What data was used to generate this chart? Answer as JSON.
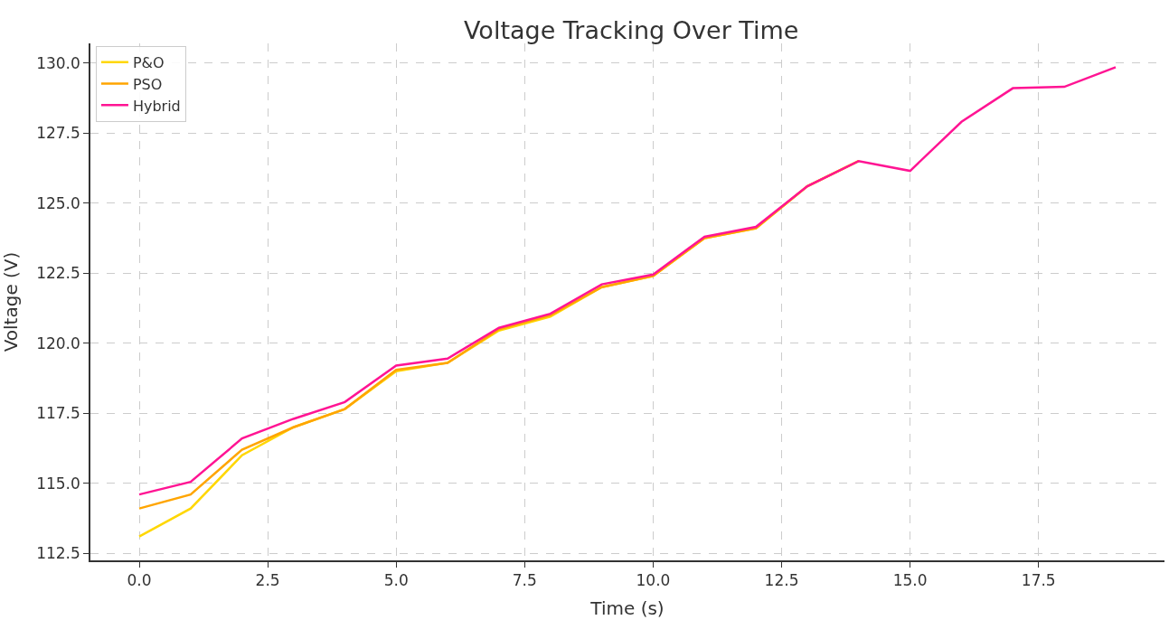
{
  "chart_data": {
    "type": "line",
    "title": "Voltage Tracking Over Time",
    "xlabel": "Time (s)",
    "ylabel": "Voltage (V)",
    "x": [
      0,
      1,
      2,
      3,
      4,
      5,
      6,
      7,
      8,
      9,
      10,
      11,
      12,
      13,
      14,
      15,
      16,
      17,
      18,
      19
    ],
    "series": [
      {
        "name": "P&O",
        "color": "#ffd700",
        "values": [
          113.1,
          114.1,
          116.0,
          117.0,
          117.65,
          119.0,
          119.3,
          120.45,
          120.95,
          122.0,
          122.4,
          123.75,
          124.1,
          125.6,
          126.5,
          null,
          null,
          null,
          null,
          null
        ]
      },
      {
        "name": "PSO",
        "color": "#ffa500",
        "values": [
          114.1,
          114.6,
          116.2,
          117.0,
          117.65,
          119.05,
          119.3,
          120.5,
          121.0,
          122.0,
          122.4,
          123.75,
          124.1,
          125.6,
          126.5,
          null,
          null,
          null,
          null,
          null
        ]
      },
      {
        "name": "Hybrid",
        "color": "#ff1493",
        "values": [
          114.6,
          115.05,
          116.6,
          117.3,
          117.9,
          119.2,
          119.45,
          120.55,
          121.05,
          122.1,
          122.45,
          123.8,
          124.15,
          125.6,
          126.5,
          126.15,
          127.9,
          129.1,
          129.15,
          129.85
        ]
      }
    ],
    "xlim": [
      -0.95,
      19.95
    ],
    "xticks": [
      {
        "value": 0,
        "label": "0.0"
      },
      {
        "value": 2.5,
        "label": "2.5"
      },
      {
        "value": 5,
        "label": "5.0"
      },
      {
        "value": 7.5,
        "label": "7.5"
      },
      {
        "value": 10,
        "label": "10.0"
      },
      {
        "value": 12.5,
        "label": "12.5"
      },
      {
        "value": 15,
        "label": "15.0"
      },
      {
        "value": 17.5,
        "label": "17.5"
      }
    ],
    "ylim": [
      112.25,
      130.7
    ],
    "yticks": [
      {
        "value": 112.5,
        "label": "112.5"
      },
      {
        "value": 115,
        "label": "115.0"
      },
      {
        "value": 117.5,
        "label": "117.5"
      },
      {
        "value": 120,
        "label": "120.0"
      },
      {
        "value": 122.5,
        "label": "122.5"
      },
      {
        "value": 125,
        "label": "125.0"
      },
      {
        "value": 127.5,
        "label": "127.5"
      },
      {
        "value": 130,
        "label": "130.0"
      }
    ],
    "grid": true,
    "legend": "top left",
    "line_style": "solid",
    "marker": "none"
  }
}
